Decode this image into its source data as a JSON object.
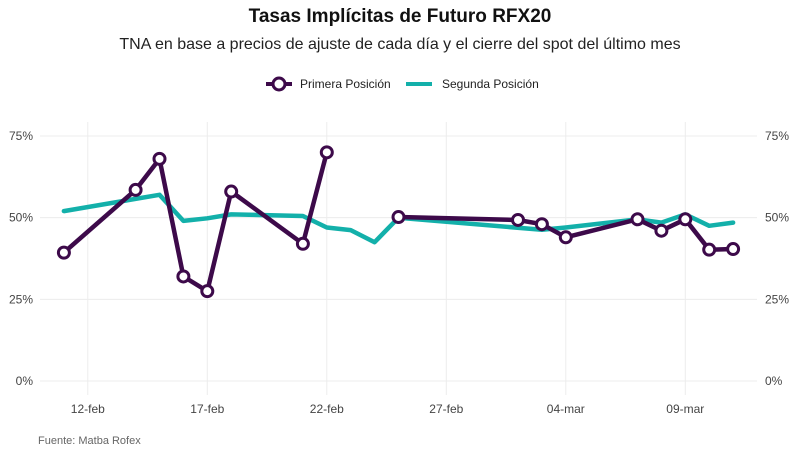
{
  "chart_data": {
    "type": "line",
    "title": "Tasas Implícitas de Futuro RFX20",
    "subtitle": "TNA en base a precios de ajuste de cada día y el cierre del spot del último mes",
    "caption": "Fuente: Matba Rofex",
    "legend_position": "top",
    "grid": true,
    "ylim": [
      0,
      0.75
    ],
    "y_ticks": [
      0,
      0.25,
      0.5,
      0.75
    ],
    "y_tick_labels": [
      "0%",
      "25%",
      "50%",
      "75%"
    ],
    "x_ticks": [
      "2021-02-12",
      "2021-02-17",
      "2021-02-22",
      "2021-02-27",
      "2021-03-04",
      "2021-03-09"
    ],
    "x_tick_labels": [
      "12-feb",
      "17-feb",
      "22-feb",
      "27-feb",
      "04-mar",
      "09-mar"
    ],
    "xlim": [
      "2021-02-10",
      "2021-03-12"
    ],
    "series": [
      {
        "name": "Primera Posición",
        "color": "#3d0a4a",
        "marker": "circle",
        "segments": [
          {
            "x": [
              "2021-02-11",
              "2021-02-14",
              "2021-02-15",
              "2021-02-16",
              "2021-02-17",
              "2021-02-18",
              "2021-02-21",
              "2021-02-22"
            ],
            "y": [
              0.393,
              0.585,
              0.68,
              0.32,
              0.275,
              0.58,
              0.42,
              0.7
            ]
          },
          {
            "x": [
              "2021-02-25",
              "2021-03-02",
              "2021-03-03",
              "2021-03-04",
              "2021-03-07",
              "2021-03-08",
              "2021-03-09",
              "2021-03-10",
              "2021-03-11"
            ],
            "y": [
              0.502,
              0.493,
              0.48,
              0.44,
              0.495,
              0.46,
              0.495,
              0.402,
              0.404
            ]
          }
        ]
      },
      {
        "name": "Segunda Posición",
        "color": "#13b0aa",
        "marker": "none",
        "segments": [
          {
            "x": [
              "2021-02-11",
              "2021-02-15",
              "2021-02-16",
              "2021-02-17",
              "2021-02-18",
              "2021-02-21",
              "2021-02-22",
              "2021-02-23",
              "2021-02-24",
              "2021-02-25",
              "2021-03-03",
              "2021-03-04",
              "2021-03-07",
              "2021-03-08",
              "2021-03-09",
              "2021-03-10",
              "2021-03-11"
            ],
            "y": [
              0.52,
              0.57,
              0.49,
              0.498,
              0.51,
              0.505,
              0.47,
              0.462,
              0.425,
              0.5,
              0.463,
              0.47,
              0.495,
              0.485,
              0.51,
              0.475,
              0.485
            ]
          }
        ]
      }
    ]
  }
}
